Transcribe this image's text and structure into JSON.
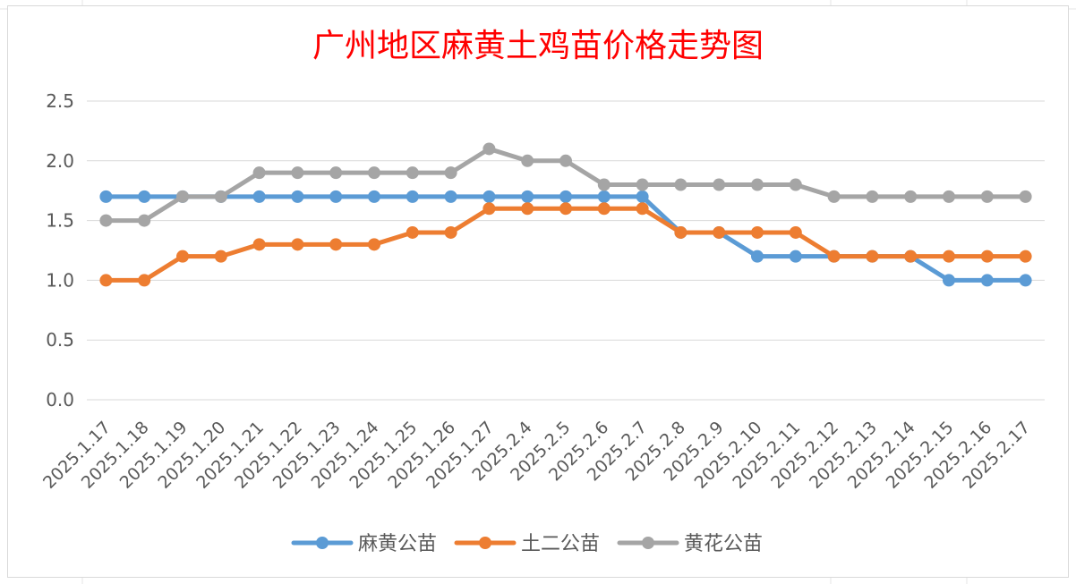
{
  "chart_data": {
    "type": "line",
    "title": "广州地区麻黄土鸡苗价格走势图",
    "xlabel": "",
    "ylabel": "",
    "ylim": [
      0,
      2.5
    ],
    "yticks": [
      "0.0",
      "0.5",
      "1.0",
      "1.5",
      "2.0",
      "2.5"
    ],
    "grid": true,
    "legend": "bottom",
    "categories": [
      "2025.1.17",
      "2025.1.18",
      "2025.1.19",
      "2025.1.20",
      "2025.1.21",
      "2025.1.22",
      "2025.1.23",
      "2025.1.24",
      "2025.1.25",
      "2025.1.26",
      "2025.1.27",
      "2025.2.4",
      "2025.2.5",
      "2025.2.6",
      "2025.2.7",
      "2025.2.8",
      "2025.2.9",
      "2025.2.10",
      "2025.2.11",
      "2025.2.12",
      "2025.2.13",
      "2025.2.14",
      "2025.2.15",
      "2025.2.16",
      "2025.2.17"
    ],
    "series": [
      {
        "name": "麻黄公苗",
        "color": "#5b9bd5",
        "values": [
          1.7,
          1.7,
          1.7,
          1.7,
          1.7,
          1.7,
          1.7,
          1.7,
          1.7,
          1.7,
          1.7,
          1.7,
          1.7,
          1.7,
          1.7,
          1.4,
          1.4,
          1.2,
          1.2,
          1.2,
          1.2,
          1.2,
          1.0,
          1.0,
          1.0
        ]
      },
      {
        "name": "土二公苗",
        "color": "#ed7d31",
        "values": [
          1.0,
          1.0,
          1.2,
          1.2,
          1.3,
          1.3,
          1.3,
          1.3,
          1.4,
          1.4,
          1.6,
          1.6,
          1.6,
          1.6,
          1.6,
          1.4,
          1.4,
          1.4,
          1.4,
          1.2,
          1.2,
          1.2,
          1.2,
          1.2,
          1.2
        ]
      },
      {
        "name": "黄花公苗",
        "color": "#a5a5a5",
        "values": [
          1.5,
          1.5,
          1.7,
          1.7,
          1.9,
          1.9,
          1.9,
          1.9,
          1.9,
          1.9,
          2.1,
          2.0,
          2.0,
          1.8,
          1.8,
          1.8,
          1.8,
          1.8,
          1.8,
          1.7,
          1.7,
          1.7,
          1.7,
          1.7,
          1.7
        ]
      }
    ]
  },
  "colors": {
    "title": "#ff0000",
    "gridline": "#d9d9d9",
    "axis_text": "#595959"
  }
}
